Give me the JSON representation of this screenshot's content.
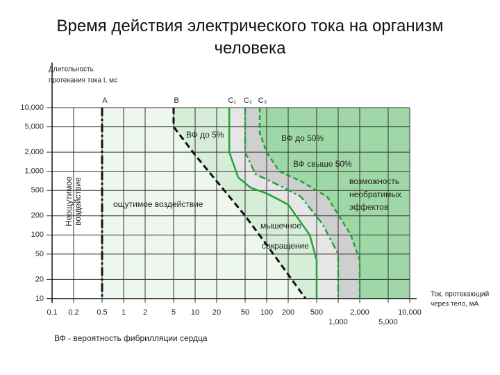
{
  "chart_data": {
    "type": "line",
    "title": "Время действия электрического тока на организм человека",
    "ylabel": [
      "Длительность",
      "протекания тока I, мс"
    ],
    "xlabel": [
      "Ток, протекающий",
      "через тело, мА"
    ],
    "xscale": "log",
    "yscale": "log",
    "grid": true,
    "xlim": [
      0.1,
      10000
    ],
    "ylim": [
      10,
      10000
    ],
    "xticks": [
      0.1,
      0.2,
      0.5,
      1,
      2,
      5,
      10,
      20,
      50,
      100,
      200,
      500,
      {
        "value": 1000,
        "label": "1,000"
      },
      {
        "value": 2000,
        "label": "2,000"
      },
      {
        "value": 5000,
        "label": "5,000"
      },
      {
        "value": 10000,
        "label": "10,000"
      }
    ],
    "yticks": [
      10,
      20,
      50,
      100,
      200,
      500,
      {
        "value": 1000,
        "label": "1,000"
      },
      {
        "value": 2000,
        "label": "2,000"
      },
      {
        "value": 5000,
        "label": "5,000"
      },
      {
        "value": 10000,
        "label": "10,000"
      }
    ],
    "series": [
      {
        "name": "A",
        "color": "#111111",
        "dash": "12 4 3 4",
        "x": [
          0.5,
          0.5
        ],
        "values": [
          10000,
          10
        ]
      },
      {
        "name": "B",
        "color": "#111111",
        "dash": "9 5",
        "x": [
          5,
          5,
          10,
          50,
          100,
          350
        ],
        "values": [
          10000,
          5000,
          1800,
          200,
          70,
          10
        ]
      },
      {
        "name": "C₁",
        "color": "#22a33a",
        "dash": "",
        "x": [
          30,
          30,
          40,
          60,
          100,
          200,
          400,
          500,
          500
        ],
        "values": [
          10000,
          2000,
          800,
          550,
          450,
          300,
          100,
          40,
          10
        ]
      },
      {
        "name": "C₂",
        "color": "#22a33a",
        "dash": "10 4 3 4",
        "x": [
          50,
          50,
          70,
          150,
          300,
          600,
          1000,
          1000
        ],
        "values": [
          10000,
          2000,
          900,
          600,
          400,
          150,
          50,
          10
        ]
      },
      {
        "name": "C₃",
        "color": "#22a33a",
        "dash": "7 4",
        "x": [
          80,
          80,
          100,
          150,
          300,
          700,
          1500,
          2000,
          2000
        ],
        "values": [
          10000,
          4000,
          2000,
          1000,
          700,
          400,
          100,
          40,
          10
        ]
      }
    ],
    "annotations": [
      "ВФ до 5%",
      "ВФ до 50%",
      "ВФ свыше 50%",
      "возможность",
      "необратимых",
      "эффектов",
      "ощутимое воздействие",
      "мышечное",
      "сокращение",
      "Неощутимое",
      "воздействие"
    ],
    "footnote": "ВФ - вероятность фибрилляции сердца"
  }
}
